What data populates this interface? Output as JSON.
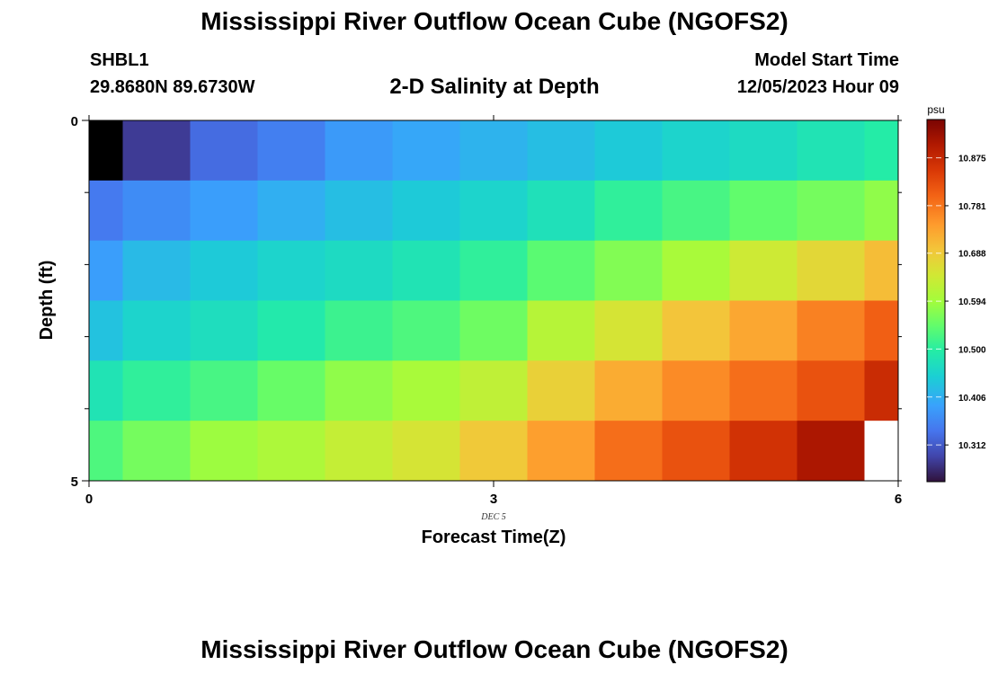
{
  "header": {
    "title": "Mississippi River Outflow Ocean Cube (NGOFS2)",
    "station": "SHBL1",
    "coordinates": "29.8680N  89.6730W",
    "subtitle": "2-D Salinity at Depth",
    "model_start_label": "Model Start Time",
    "model_start_value": "12/05/2023 Hour 09"
  },
  "footer": {
    "title_repeat": "Mississippi River Outflow Ocean Cube (NGOFS2)"
  },
  "chart_data": {
    "type": "heatmap",
    "title": "2-D Salinity at Depth",
    "xlabel": "Forecast Time(Z)",
    "ylabel": "Depth (ft)",
    "x_range": [
      0,
      6
    ],
    "y_range": [
      0,
      5
    ],
    "x_ticks": [
      0,
      3,
      6
    ],
    "y_ticks": [
      0,
      5
    ],
    "date_annotation": "DEC 5",
    "time_step_hours": 0.5,
    "rows": 6,
    "cols": 13,
    "colorbar": {
      "unit": "psu",
      "ticks": [
        10.312,
        10.406,
        10.5,
        10.594,
        10.688,
        10.781,
        10.875
      ],
      "min": 10.24,
      "max": 10.95
    },
    "grid_values": [
      [
        10.24,
        10.28,
        10.33,
        10.35,
        10.38,
        10.395,
        10.41,
        10.425,
        10.44,
        10.455,
        10.465,
        10.48,
        10.495
      ],
      [
        10.345,
        10.365,
        10.385,
        10.405,
        10.425,
        10.44,
        10.455,
        10.475,
        10.505,
        10.525,
        10.545,
        10.56,
        10.58
      ],
      [
        10.385,
        10.42,
        10.44,
        10.455,
        10.465,
        10.48,
        10.505,
        10.54,
        10.57,
        10.6,
        10.64,
        10.67,
        10.705
      ],
      [
        10.43,
        10.455,
        10.47,
        10.49,
        10.515,
        10.53,
        10.555,
        10.615,
        10.65,
        10.695,
        10.73,
        10.77,
        10.805
      ],
      [
        10.48,
        10.505,
        10.525,
        10.55,
        10.58,
        10.6,
        10.625,
        10.68,
        10.725,
        10.76,
        10.79,
        10.82,
        10.87
      ],
      [
        10.53,
        10.56,
        10.59,
        10.605,
        10.63,
        10.65,
        10.69,
        10.74,
        10.79,
        10.82,
        10.86,
        10.905,
        null
      ]
    ]
  }
}
